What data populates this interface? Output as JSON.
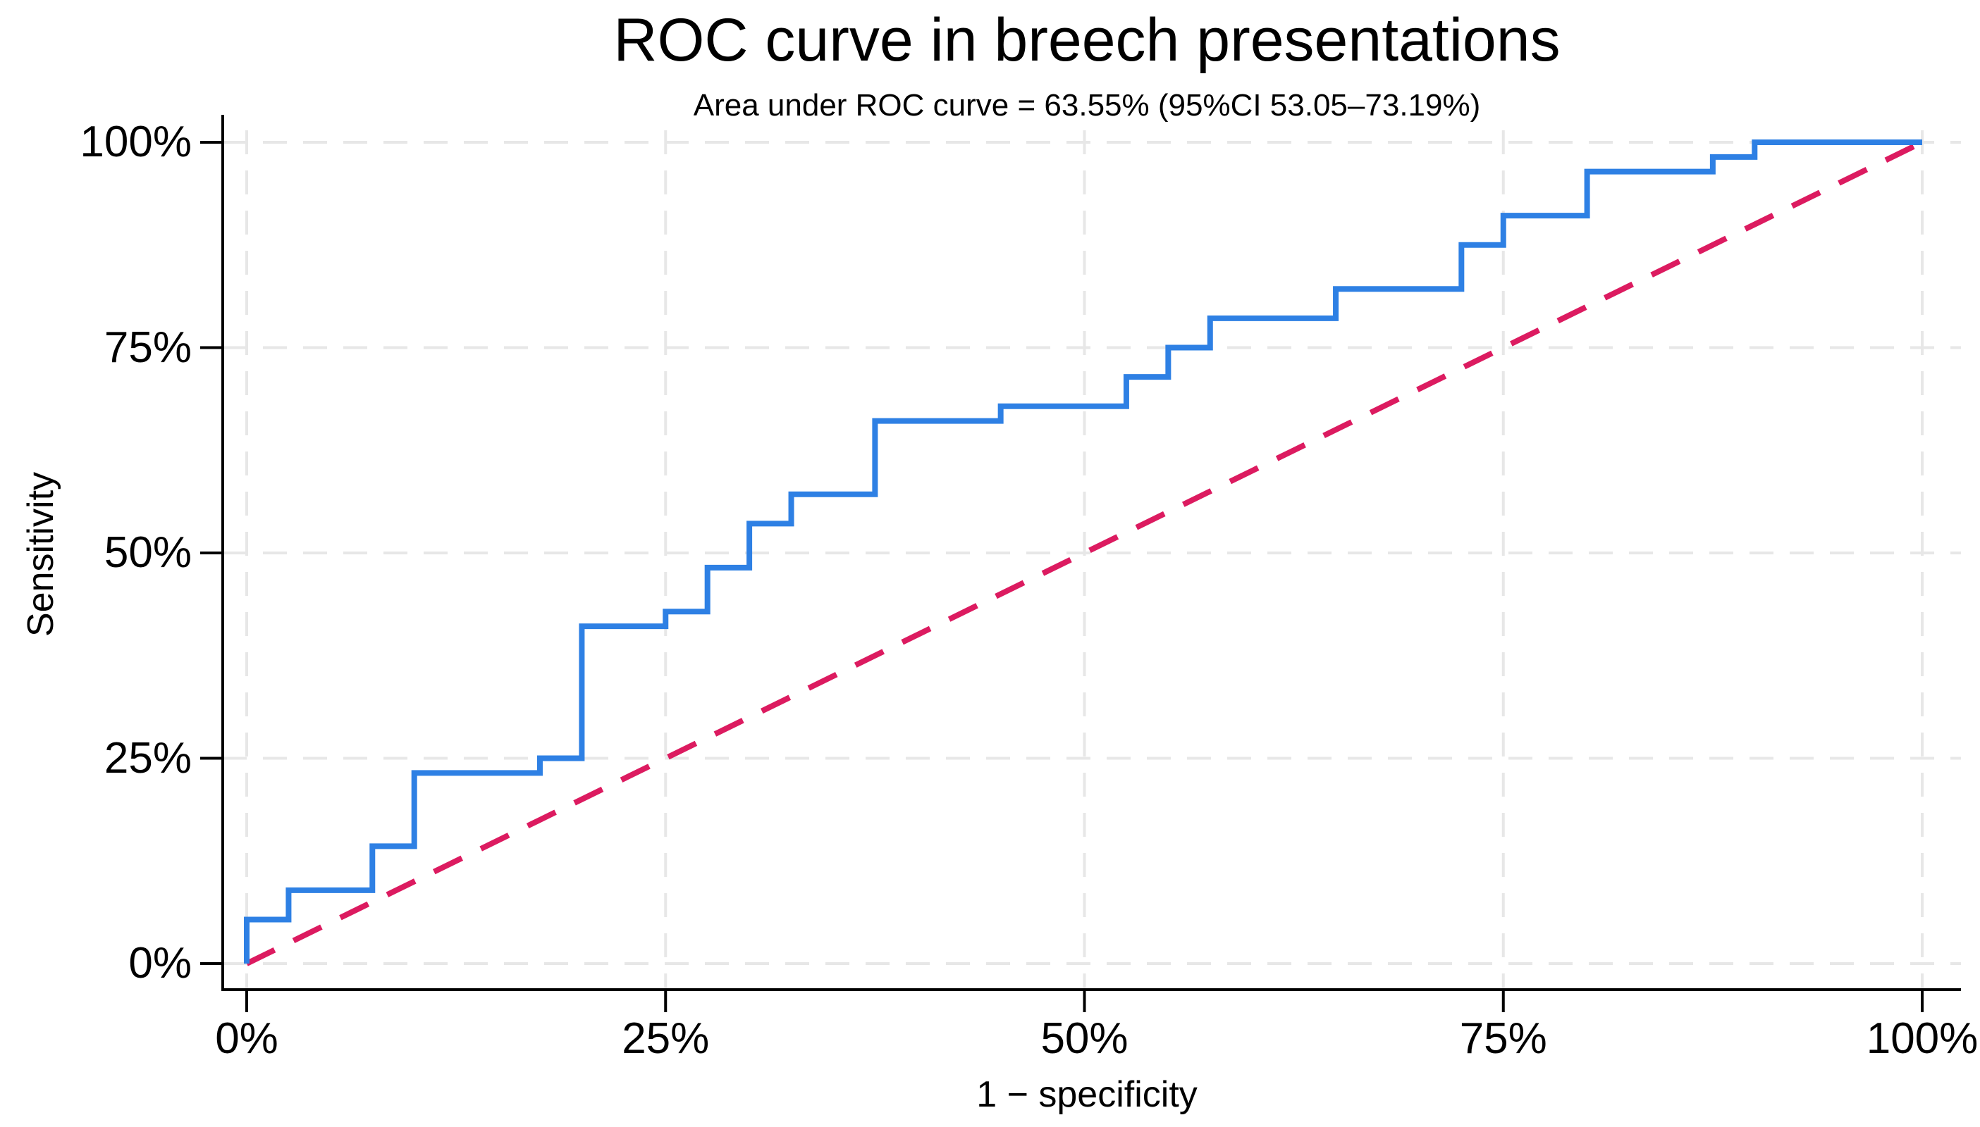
{
  "figure": {
    "title": "ROC curve in breech presentations",
    "subtitle": "Area under ROC curve = 63.55% (95%CI 53.05–73.19%)"
  },
  "chart_data": {
    "type": "line",
    "title": "ROC curve in breech presentations",
    "subtitle": "Area under ROC curve = 63.55% (95%CI 53.05–73.19%)",
    "xlabel": "1 − specificity",
    "ylabel": "Sensitivity",
    "xlim": [
      0,
      100
    ],
    "ylim": [
      0,
      100
    ],
    "grid": "dashed gridlines at every 25% on both axes",
    "legend": "none",
    "auc_percent": 63.55,
    "auc_ci_95_percent": [
      53.05,
      73.19
    ],
    "x_ticks": {
      "values": [
        0,
        25,
        50,
        75,
        100
      ],
      "labels": [
        "0%",
        "25%",
        "50%",
        "75%",
        "100%"
      ]
    },
    "y_ticks": {
      "values": [
        0,
        25,
        50,
        75,
        100
      ],
      "labels": [
        "0%",
        "25%",
        "50%",
        "75%",
        "100%"
      ]
    },
    "colors": {
      "roc_curve": "#2e80e4",
      "reference_line": "#dc1b60",
      "gridline": "#e7e7e7",
      "axis": "#000000",
      "background": "#ffffff"
    },
    "series": [
      {
        "name": "ROC step curve",
        "type": "step",
        "color": "#2e80e4",
        "points": [
          [
            0,
            0
          ],
          [
            0,
            5.36
          ],
          [
            2.5,
            5.36
          ],
          [
            2.5,
            8.93
          ],
          [
            7.5,
            8.93
          ],
          [
            7.5,
            14.29
          ],
          [
            10,
            14.29
          ],
          [
            10,
            23.21
          ],
          [
            17.5,
            23.21
          ],
          [
            17.5,
            25
          ],
          [
            20,
            25
          ],
          [
            20,
            41.07
          ],
          [
            25,
            41.07
          ],
          [
            25,
            42.86
          ],
          [
            27.5,
            42.86
          ],
          [
            27.5,
            48.21
          ],
          [
            30,
            48.21
          ],
          [
            30,
            53.57
          ],
          [
            32.5,
            53.57
          ],
          [
            32.5,
            57.14
          ],
          [
            37.5,
            57.14
          ],
          [
            37.5,
            66.07
          ],
          [
            45,
            66.07
          ],
          [
            45,
            67.86
          ],
          [
            52.5,
            67.86
          ],
          [
            52.5,
            71.43
          ],
          [
            55,
            71.43
          ],
          [
            55,
            75
          ],
          [
            57.5,
            75
          ],
          [
            57.5,
            78.57
          ],
          [
            65,
            78.57
          ],
          [
            65,
            82.14
          ],
          [
            72.5,
            82.14
          ],
          [
            72.5,
            87.5
          ],
          [
            75,
            87.5
          ],
          [
            75,
            91.07
          ],
          [
            80,
            91.07
          ],
          [
            80,
            96.43
          ],
          [
            87.5,
            96.43
          ],
          [
            87.5,
            98.21
          ],
          [
            90,
            98.21
          ],
          [
            90,
            100
          ],
          [
            100,
            100
          ]
        ]
      },
      {
        "name": "chance diagonal reference line",
        "type": "dashed-line",
        "color": "#dc1b60",
        "points": [
          [
            0,
            0
          ],
          [
            100,
            100
          ]
        ]
      }
    ]
  }
}
